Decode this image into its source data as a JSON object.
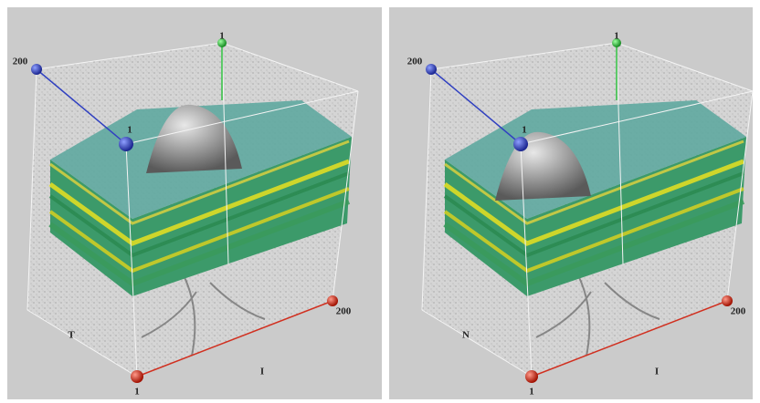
{
  "panels": [
    {
      "back_left_label": "200",
      "top_label": "1",
      "front_label": "1",
      "right_label": "200",
      "side_label": "T",
      "bottom_label": "I",
      "corner_label": "1"
    },
    {
      "back_left_label": "200",
      "top_label": "1",
      "front_label": "1",
      "right_label": "200",
      "side_label": "N",
      "bottom_label": "I",
      "corner_label": "1"
    }
  ]
}
